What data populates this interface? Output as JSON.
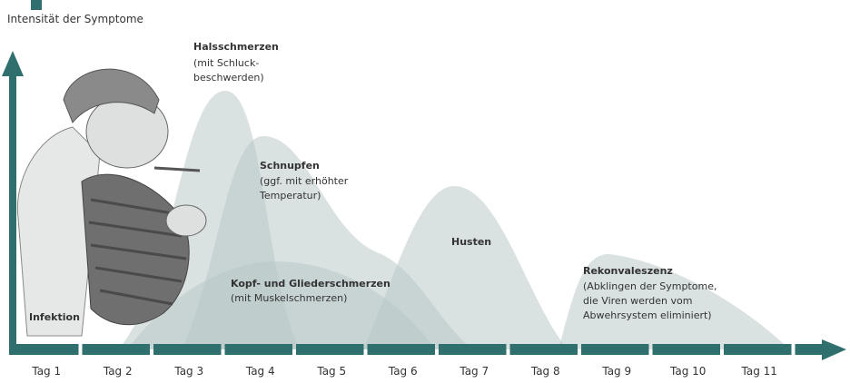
{
  "y_axis_label": "Intensität der Symptome",
  "phases": [
    {
      "title": "Halsschmerzen",
      "lines": [
        "(mit Schluck-",
        "beschwerden)"
      ]
    },
    {
      "title": "Schnupfen",
      "lines": [
        "(ggf. mit erhöhter",
        "Temperatur)"
      ]
    },
    {
      "title": "Husten",
      "lines": []
    },
    {
      "title": "Kopf- und Gliederschmerzen",
      "lines": [
        "(mit Muskelschmerzen)"
      ]
    },
    {
      "title": "Rekonvaleszenz",
      "lines": [
        "(Abklingen der Symptome,",
        "die Viren werden vom",
        "Abwehrsystem eliminiert)"
      ]
    },
    {
      "title": "Infektion",
      "lines": []
    }
  ],
  "days": [
    "Tag 1",
    "Tag 2",
    "Tag 3",
    "Tag 4",
    "Tag 5",
    "Tag 6",
    "Tag 7",
    "Tag 8",
    "Tag 9",
    "Tag 10",
    "Tag 11"
  ]
}
